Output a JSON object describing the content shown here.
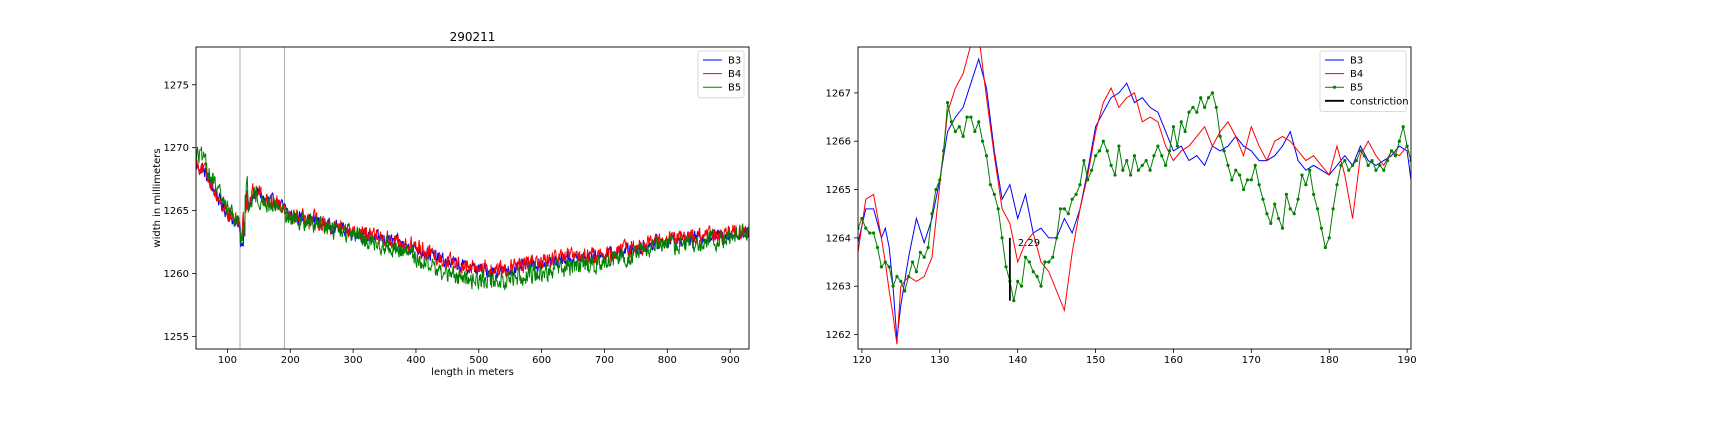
{
  "chart_data": [
    {
      "type": "line",
      "title": "290211",
      "xlabel": "length in meters",
      "ylabel": "width in millimeters",
      "xlim": [
        50,
        930
      ],
      "ylim": [
        1254,
        1278
      ],
      "xticks": [
        100,
        200,
        300,
        400,
        500,
        600,
        700,
        800,
        900
      ],
      "yticks": [
        1255,
        1260,
        1265,
        1270,
        1275
      ],
      "vlines": [
        120,
        191
      ],
      "legend_position": "top-right",
      "series": [
        {
          "name": "B3",
          "color": "#0000ff",
          "x": [
            50,
            60,
            70,
            80,
            90,
            100,
            110,
            120,
            130,
            140,
            150,
            160,
            170,
            180,
            190,
            200,
            220,
            240,
            260,
            280,
            300,
            320,
            340,
            360,
            380,
            400,
            420,
            440,
            460,
            480,
            500,
            520,
            540,
            560,
            580,
            600,
            620,
            640,
            660,
            680,
            700,
            720,
            740,
            760,
            780,
            800,
            820,
            840,
            860,
            880,
            900,
            920,
            930
          ],
          "y": [
            1268.5,
            1268.3,
            1267.5,
            1266.5,
            1265.5,
            1264.8,
            1264.2,
            1263.8,
            1264.5,
            1266.2,
            1266.5,
            1265.8,
            1265.7,
            1265.6,
            1265.2,
            1264.6,
            1264.4,
            1264.2,
            1263.8,
            1263.6,
            1263.3,
            1263,
            1262.8,
            1262.6,
            1262.3,
            1262,
            1261.6,
            1261.1,
            1260.8,
            1260.5,
            1260.3,
            1260.2,
            1260.2,
            1260.4,
            1260.7,
            1260.8,
            1261,
            1261.2,
            1261.2,
            1261.3,
            1261.4,
            1261.6,
            1261.9,
            1262.1,
            1262.4,
            1262.6,
            1262.7,
            1262.8,
            1262.9,
            1263,
            1263.1,
            1263.2,
            1263.2
          ],
          "noise": 0.45
        },
        {
          "name": "B4",
          "color": "#ff0000",
          "x": [
            50,
            60,
            70,
            80,
            90,
            100,
            110,
            120,
            130,
            140,
            150,
            160,
            170,
            180,
            190,
            200,
            220,
            240,
            260,
            280,
            300,
            320,
            340,
            360,
            380,
            400,
            420,
            440,
            460,
            480,
            500,
            520,
            540,
            560,
            580,
            600,
            620,
            640,
            660,
            680,
            700,
            720,
            740,
            760,
            780,
            800,
            820,
            840,
            860,
            880,
            900,
            920,
            930
          ],
          "y": [
            1268.8,
            1268.4,
            1267.7,
            1266.6,
            1265.6,
            1264.9,
            1264.3,
            1263.9,
            1264.8,
            1266.4,
            1266.6,
            1265.9,
            1265.8,
            1265.7,
            1265.3,
            1264.7,
            1264.5,
            1264.3,
            1263.9,
            1263.7,
            1263.4,
            1263.1,
            1262.9,
            1262.7,
            1262.4,
            1262.1,
            1261.7,
            1261.2,
            1260.9,
            1260.6,
            1260.4,
            1260.3,
            1260.3,
            1260.5,
            1260.8,
            1260.9,
            1261.1,
            1261.3,
            1261.3,
            1261.4,
            1261.5,
            1261.7,
            1262,
            1262.2,
            1262.5,
            1262.7,
            1262.8,
            1262.9,
            1263,
            1263.1,
            1263.2,
            1263.3,
            1263.3
          ],
          "noise": 0.55
        },
        {
          "name": "B5",
          "color": "#008000",
          "x": [
            50,
            60,
            70,
            80,
            90,
            100,
            110,
            120,
            130,
            140,
            150,
            160,
            170,
            180,
            190,
            200,
            220,
            240,
            260,
            280,
            300,
            320,
            340,
            360,
            380,
            400,
            420,
            440,
            460,
            480,
            500,
            520,
            540,
            560,
            580,
            600,
            620,
            640,
            660,
            680,
            700,
            720,
            740,
            760,
            780,
            800,
            820,
            840,
            860,
            880,
            900,
            920,
            930
          ],
          "y": [
            1269.6,
            1269.2,
            1268.2,
            1267,
            1266,
            1265.3,
            1264.6,
            1263.9,
            1264.8,
            1266.2,
            1266.1,
            1265.6,
            1265.5,
            1265.4,
            1265,
            1264.5,
            1264.2,
            1263.9,
            1263.6,
            1263.3,
            1263,
            1262.7,
            1262.4,
            1262.1,
            1261.8,
            1261.3,
            1260.7,
            1260.1,
            1259.8,
            1259.6,
            1259.5,
            1259.4,
            1259.5,
            1259.7,
            1260,
            1260.1,
            1260.3,
            1260.5,
            1260.6,
            1260.7,
            1260.9,
            1261.1,
            1261.4,
            1261.7,
            1262,
            1262.2,
            1262.3,
            1262.4,
            1262.5,
            1262.7,
            1262.9,
            1263.2,
            1263.3
          ],
          "noise": 0.6
        }
      ]
    },
    {
      "type": "line",
      "xlim": [
        119.5,
        190.5
      ],
      "ylim": [
        1261.7,
        1267.95
      ],
      "xticks": [
        120,
        130,
        140,
        150,
        160,
        170,
        180,
        190
      ],
      "yticks": [
        1262,
        1263,
        1264,
        1265,
        1266,
        1267
      ],
      "legend_position": "top-right",
      "annotation": {
        "text": "2.29",
        "x": 139,
        "y_bottom": 1262.7,
        "y_top": 1264.0
      },
      "series": [
        {
          "name": "B3",
          "color": "#0000ff",
          "marker": false,
          "x": [
            119.5,
            120.5,
            121.5,
            122.5,
            123,
            123.5,
            124,
            124.5,
            125,
            126,
            127,
            128,
            129,
            130,
            131,
            132,
            133,
            134,
            135,
            136,
            137,
            138,
            139,
            140,
            141,
            142,
            143,
            144,
            145,
            146,
            147,
            148,
            149,
            150,
            151,
            152,
            153,
            154,
            155,
            156,
            157,
            158,
            159,
            160,
            161,
            162,
            163,
            164,
            165,
            166,
            167,
            168,
            169,
            170,
            171,
            172,
            173,
            174,
            175,
            176,
            177,
            178,
            179,
            180,
            181,
            182,
            183,
            184,
            185,
            186,
            187,
            188,
            189,
            190,
            190.5
          ],
          "y": [
            1263.9,
            1264.6,
            1264.6,
            1264,
            1264.2,
            1263.8,
            1263,
            1261.9,
            1262.6,
            1263.6,
            1264.4,
            1263.9,
            1264.4,
            1265.2,
            1266.2,
            1266.5,
            1266.7,
            1267.2,
            1267.7,
            1267.1,
            1265.8,
            1264.8,
            1265.1,
            1264.4,
            1264.9,
            1264.1,
            1264.2,
            1264,
            1264,
            1264.4,
            1264.1,
            1264.6,
            1265.4,
            1266.3,
            1266.6,
            1266.9,
            1267,
            1267.2,
            1266.8,
            1266.9,
            1266.7,
            1266.6,
            1266.2,
            1265.8,
            1265.9,
            1265.6,
            1265.7,
            1265.5,
            1265.9,
            1265.8,
            1265.9,
            1266.1,
            1265.9,
            1265.8,
            1265.6,
            1265.6,
            1265.7,
            1265.9,
            1266.2,
            1265.6,
            1265.4,
            1265.5,
            1265.4,
            1265.3,
            1265.5,
            1265.7,
            1265.5,
            1265.9,
            1265.6,
            1265.5,
            1265.6,
            1265.7,
            1265.9,
            1265.8,
            1265.2
          ]
        },
        {
          "name": "B4",
          "color": "#ff0000",
          "marker": false,
          "x": [
            119.5,
            120.5,
            121.5,
            122.5,
            123,
            123.5,
            124,
            124.5,
            125,
            126,
            127,
            128,
            129,
            130,
            131,
            132,
            133,
            134,
            135,
            136,
            137,
            138,
            139,
            140,
            141,
            142,
            143,
            144,
            145,
            146,
            147,
            148,
            149,
            150,
            151,
            152,
            153,
            154,
            155,
            156,
            157,
            158,
            159,
            160,
            161,
            162,
            163,
            164,
            165,
            166,
            167,
            168,
            169,
            170,
            171,
            172,
            173,
            174,
            175,
            176,
            177,
            178,
            179,
            180,
            181,
            182,
            183,
            184,
            185,
            186,
            187,
            188,
            189,
            190,
            190.5
          ],
          "y": [
            1263.7,
            1264.8,
            1264.9,
            1264,
            1263.5,
            1262.9,
            1262.4,
            1261.8,
            1263,
            1263.2,
            1263.1,
            1263.2,
            1263.6,
            1265.1,
            1266.6,
            1267.1,
            1267.4,
            1268,
            1268.2,
            1266.9,
            1265.7,
            1264.6,
            1264.3,
            1263.5,
            1263.9,
            1264.1,
            1263.5,
            1263.3,
            1262.9,
            1262.5,
            1263.7,
            1264.6,
            1265.3,
            1266.2,
            1266.8,
            1267.1,
            1266.7,
            1266.9,
            1267,
            1266.4,
            1266.5,
            1266.4,
            1265.9,
            1265.6,
            1265.8,
            1265.9,
            1266.1,
            1266.3,
            1265.9,
            1266.2,
            1266.4,
            1266.1,
            1265.7,
            1266.3,
            1265.9,
            1265.6,
            1266,
            1266.1,
            1266,
            1265.8,
            1265.6,
            1265.7,
            1265.5,
            1265.3,
            1265.9,
            1265.3,
            1264.4,
            1265.7,
            1266,
            1265.7,
            1265.5,
            1265.8,
            1265.7,
            1265.9,
            1265.6
          ]
        },
        {
          "name": "B5",
          "color": "#008000",
          "marker": true,
          "x": [
            119.5,
            120,
            120.5,
            121,
            121.5,
            122,
            122.5,
            123,
            123.5,
            124,
            124.5,
            125,
            125.5,
            126,
            126.5,
            127,
            127.5,
            128,
            128.5,
            129,
            129.5,
            130,
            130.5,
            131,
            131.5,
            132,
            132.5,
            133,
            133.5,
            134,
            134.5,
            135,
            135.5,
            136,
            136.5,
            137,
            137.5,
            138,
            138.5,
            139,
            139.5,
            140,
            140.5,
            141,
            141.5,
            142,
            142.5,
            143,
            143.5,
            144,
            144.5,
            145,
            145.5,
            146,
            146.5,
            147,
            147.5,
            148,
            148.5,
            149,
            149.5,
            150,
            150.5,
            151,
            151.5,
            152,
            152.5,
            153,
            153.5,
            154,
            154.5,
            155,
            155.5,
            156,
            156.5,
            157,
            157.5,
            158,
            158.5,
            159,
            159.5,
            160,
            160.5,
            161,
            161.5,
            162,
            162.5,
            163,
            163.5,
            164,
            164.5,
            165,
            165.5,
            166,
            166.5,
            167,
            167.5,
            168,
            168.5,
            169,
            169.5,
            170,
            170.5,
            171,
            171.5,
            172,
            172.5,
            173,
            173.5,
            174,
            174.5,
            175,
            175.5,
            176,
            176.5,
            177,
            177.5,
            178,
            178.5,
            179,
            179.5,
            180,
            180.5,
            181,
            181.5,
            182,
            182.5,
            183,
            183.5,
            184,
            184.5,
            185,
            185.5,
            186,
            186.5,
            187,
            187.5,
            188,
            188.5,
            189,
            189.5,
            190,
            190.5
          ],
          "y": [
            1264.2,
            1264.4,
            1264.2,
            1264.1,
            1264.1,
            1263.8,
            1263.4,
            1263.5,
            1263.4,
            1263,
            1263.2,
            1263.1,
            1262.9,
            1263.2,
            1263.5,
            1263.3,
            1263.7,
            1263.6,
            1263.8,
            1264.5,
            1265,
            1265.2,
            1265.8,
            1266.8,
            1266.4,
            1266.2,
            1266.3,
            1266.1,
            1266.5,
            1266.5,
            1266.2,
            1266.4,
            1266,
            1265.7,
            1265.1,
            1264.9,
            1264.6,
            1264,
            1263.4,
            1263.1,
            1262.7,
            1263.1,
            1263,
            1263.6,
            1263.5,
            1263.3,
            1263.2,
            1263,
            1263.5,
            1263.5,
            1263.6,
            1264,
            1264.6,
            1264.6,
            1264.5,
            1264.8,
            1264.9,
            1265.1,
            1265.6,
            1265.2,
            1265.4,
            1265.7,
            1265.8,
            1266,
            1265.8,
            1265.5,
            1265.3,
            1265.9,
            1265.4,
            1265.6,
            1265.3,
            1265.7,
            1265.4,
            1265.5,
            1265.6,
            1265.4,
            1265.7,
            1265.9,
            1265.7,
            1265.5,
            1265.8,
            1266.3,
            1265.9,
            1266.4,
            1266.2,
            1266.6,
            1266.7,
            1266.6,
            1266.9,
            1266.7,
            1266.9,
            1267,
            1266.7,
            1266.1,
            1265.8,
            1265.5,
            1265.2,
            1265.4,
            1265.3,
            1265,
            1265.2,
            1265.2,
            1265.5,
            1265.1,
            1264.8,
            1264.5,
            1264.3,
            1264.7,
            1264.4,
            1264.2,
            1264.9,
            1264.6,
            1264.5,
            1264.8,
            1265.3,
            1265.1,
            1265.4,
            1264.9,
            1264.6,
            1264.2,
            1263.8,
            1264,
            1264.6,
            1265.1,
            1265.5,
            1265.6,
            1265.4,
            1265.5,
            1265.6,
            1265.8,
            1265.7,
            1265.5,
            1265.6,
            1265.4,
            1265.5,
            1265.4,
            1265.6,
            1265.8,
            1265.7,
            1266,
            1266.3,
            1265.9,
            1265.6
          ]
        },
        {
          "name": "constriction",
          "color": "#000000",
          "legend_only": true
        }
      ]
    }
  ]
}
